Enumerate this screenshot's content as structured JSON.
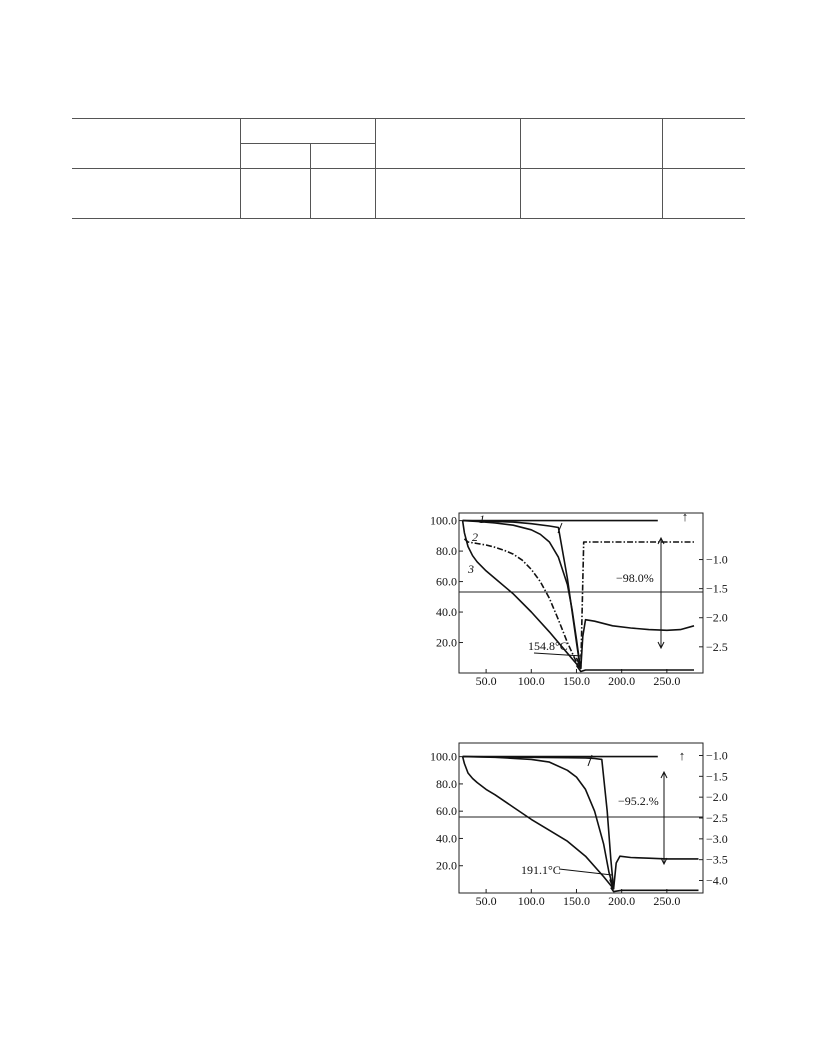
{
  "chart_data": [
    {
      "type": "line",
      "title": "",
      "xlabel": "",
      "ylabel": "",
      "x_ticks": [
        "50.0",
        "100.0",
        "150.0",
        "200.0",
        "250.0"
      ],
      "y_ticks_left": [
        "100.0",
        "80.0",
        "60.0",
        "40.0",
        "20.0"
      ],
      "y_ticks_right": [
        "−1.0",
        "−1.5",
        "−2.0",
        "−2.5"
      ],
      "xlim": [
        20,
        290
      ],
      "ylim_left": [
        0,
        105
      ],
      "ylim_right": [
        -2.95,
        -0.2
      ],
      "curve_labels": [
        "1",
        "2",
        "3"
      ],
      "annotations": {
        "mass_loss": "−98.0%",
        "peak_temp": "154.8°C",
        "arrow": "↑"
      },
      "series": [
        {
          "name": "1",
          "axis": "left",
          "style": "solid",
          "x": [
            24,
            40,
            60,
            80,
            100,
            120,
            130,
            140,
            150,
            152,
            153.5,
            154.8
          ],
          "y": [
            100,
            99.8,
            99.5,
            99,
            98,
            96.5,
            95.5,
            62,
            20,
            12,
            6,
            3
          ]
        },
        {
          "name": "2",
          "axis": "left",
          "style": "solid",
          "x": [
            24,
            40,
            60,
            80,
            100,
            110,
            120,
            130,
            140,
            145,
            150,
            153,
            154.8
          ],
          "y": [
            100,
            99.5,
            98.5,
            97,
            94,
            91,
            86,
            76,
            58,
            42,
            22,
            9,
            3
          ]
        },
        {
          "name": "3",
          "axis": "left",
          "style": "solid",
          "x": [
            24,
            26,
            30,
            35,
            40,
            50,
            60,
            80,
            100,
            120,
            140,
            150,
            154.8
          ],
          "y": [
            100,
            92,
            83,
            77,
            73,
            67,
            62,
            52,
            40,
            27,
            13,
            6,
            3
          ]
        },
        {
          "name": "",
          "axis": "left",
          "style": "dashdot",
          "x": [
            26,
            30,
            40,
            50,
            60,
            70,
            80,
            90,
            100,
            110,
            120,
            130,
            140,
            150,
            154.8,
            158,
            165,
            200,
            240,
            280
          ],
          "y": [
            88,
            86,
            85,
            84,
            82.5,
            80.5,
            78,
            74,
            68,
            60,
            49,
            35,
            20,
            7,
            3,
            86,
            86,
            86,
            86,
            86
          ]
        },
        {
          "name": "",
          "axis": "left",
          "style": "solid",
          "x": [
            150,
            154.8,
            157,
            160,
            170,
            190,
            210,
            230,
            250,
            265,
            280
          ],
          "y": [
            10,
            3,
            24,
            35,
            34,
            31,
            29.5,
            28.5,
            28,
            28.5,
            31
          ]
        },
        {
          "name": "",
          "axis": "left",
          "style": "solid",
          "x": [
            150,
            154.8,
            160,
            180,
            200,
            240,
            280
          ],
          "y": [
            5,
            1,
            2,
            2,
            2,
            2,
            2
          ]
        },
        {
          "name": "",
          "axis": "left",
          "style": "solid",
          "x": [
            24,
            240
          ],
          "y": [
            100,
            100
          ]
        }
      ]
    },
    {
      "type": "line",
      "title": "",
      "xlabel": "",
      "ylabel": "",
      "x_ticks": [
        "50.0",
        "100.0",
        "150.0",
        "200.0",
        "250.0"
      ],
      "y_ticks_left": [
        "100.0",
        "80.0",
        "60.0",
        "40.0",
        "20.0"
      ],
      "y_ticks_right": [
        "−1.0",
        "−1.5",
        "−2.0",
        "−2.5",
        "−3.0",
        "−3.5",
        "−4.0"
      ],
      "xlim": [
        20,
        290
      ],
      "ylim_left": [
        0,
        110
      ],
      "ylim_right": [
        -4.3,
        -0.7
      ],
      "curve_labels": [],
      "annotations": {
        "mass_loss": "−95.2.%",
        "peak_temp": "191.1°C",
        "arrow": "↑"
      },
      "series": [
        {
          "name": "",
          "axis": "left",
          "style": "solid",
          "x": [
            24,
            60,
            100,
            140,
            160,
            170,
            178,
            184,
            188,
            191.1
          ],
          "y": [
            100,
            99.8,
            99.5,
            99.2,
            99,
            98.6,
            98,
            60,
            25,
            3
          ]
        },
        {
          "name": "",
          "axis": "left",
          "style": "solid",
          "x": [
            24,
            60,
            100,
            120,
            140,
            150,
            160,
            170,
            180,
            186,
            191.1
          ],
          "y": [
            100,
            99.5,
            98,
            96,
            90,
            85,
            76,
            60,
            36,
            15,
            3
          ]
        },
        {
          "name": "",
          "axis": "left",
          "style": "solid",
          "x": [
            24,
            26,
            30,
            35,
            40,
            50,
            60,
            80,
            100,
            120,
            140,
            160,
            180,
            191.1
          ],
          "y": [
            100,
            95,
            88,
            84,
            81,
            76,
            72,
            63,
            54,
            46,
            38,
            27,
            12,
            3
          ]
        },
        {
          "name": "",
          "axis": "left",
          "style": "solid",
          "x": [
            187,
            191.1,
            194,
            198,
            210,
            230,
            250,
            270,
            285
          ],
          "y": [
            10,
            3,
            22,
            27,
            26,
            25.5,
            25,
            25,
            25
          ]
        },
        {
          "name": "",
          "axis": "left",
          "style": "solid",
          "x": [
            188,
            191.1,
            200,
            230,
            260,
            285
          ],
          "y": [
            4,
            1,
            2,
            2,
            2,
            2
          ]
        },
        {
          "name": "",
          "axis": "left",
          "style": "solid",
          "x": [
            24,
            240
          ],
          "y": [
            100,
            100
          ]
        }
      ]
    }
  ]
}
